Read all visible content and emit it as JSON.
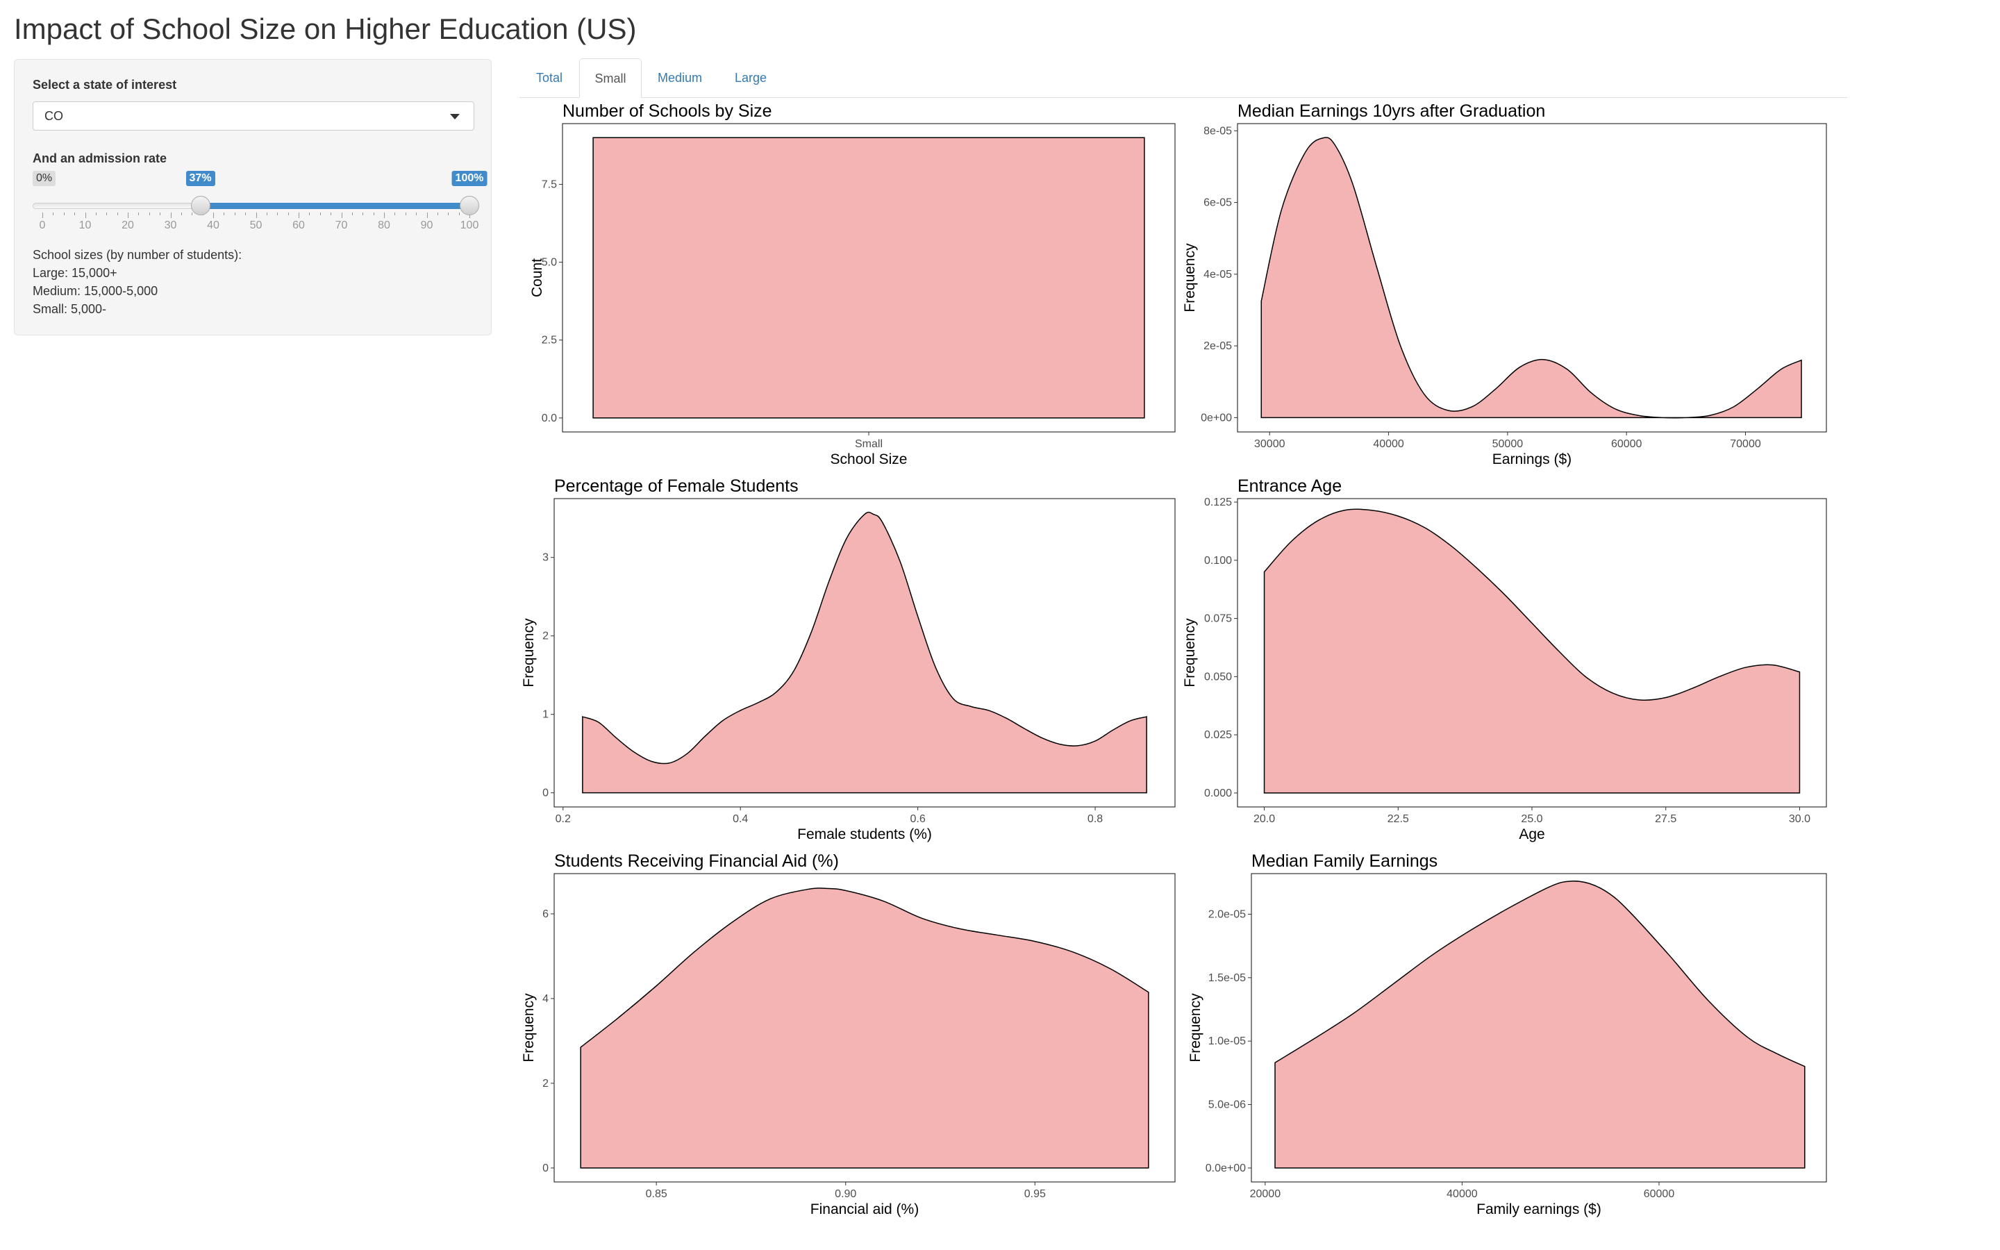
{
  "page": {
    "title": "Impact of School Size on Higher Education (US)"
  },
  "sidebar": {
    "state_label": "Select a state of interest",
    "state_value": "CO",
    "rate_label": "And an admission rate",
    "rate_min_label": "0%",
    "rate_from_label": "37%",
    "rate_to_label": "100%",
    "slider": {
      "min": 0,
      "max": 100,
      "from": 37,
      "to": 100,
      "tick_labels": [
        "0",
        "10",
        "20",
        "30",
        "40",
        "50",
        "60",
        "70",
        "80",
        "90",
        "100"
      ]
    },
    "notes": [
      "School sizes (by number of students):",
      "Large: 15,000+",
      "Medium: 15,000-5,000",
      "Small: 5,000-"
    ]
  },
  "tabs": [
    {
      "label": "Total",
      "active": false
    },
    {
      "label": "Small",
      "active": true
    },
    {
      "label": "Medium",
      "active": false
    },
    {
      "label": "Large",
      "active": false
    }
  ],
  "colors": {
    "fill": "#f4b4b4",
    "accent": "#428bca",
    "link": "#337ab7"
  },
  "chart_data": [
    {
      "id": "schools",
      "type": "bar",
      "title": "Number of Schools by Size",
      "xlabel": "School Size",
      "ylabel": "Count",
      "categories": [
        "Small"
      ],
      "values": [
        9
      ],
      "ylim": [
        -0.45,
        9.45
      ],
      "yticks": [
        0,
        2.5,
        5,
        7.5
      ],
      "ytick_labels": [
        "0.0",
        "2.5",
        "5.0",
        "7.5"
      ]
    },
    {
      "id": "earnings",
      "type": "area",
      "title": "Median Earnings 10yrs after Graduation",
      "xlabel": "Earnings ($)",
      "ylabel": "Frequency",
      "xlim": [
        27300,
        76800
      ],
      "ylim": [
        -4e-06,
        8.2e-05
      ],
      "xticks": [
        30000,
        40000,
        50000,
        60000,
        70000
      ],
      "xtick_labels": [
        "30000",
        "40000",
        "50000",
        "60000",
        "70000"
      ],
      "yticks": [
        0,
        2e-05,
        4e-05,
        6e-05,
        8e-05
      ],
      "ytick_labels": [
        "0e+00",
        "2e-05",
        "4e-05",
        "6e-05",
        "8e-05"
      ],
      "x": [
        29300,
        31000,
        33000,
        34500,
        35500,
        37000,
        39000,
        41000,
        43000,
        45000,
        47000,
        49000,
        51000,
        53000,
        55000,
        57000,
        59000,
        61000,
        63000,
        65000,
        67000,
        69000,
        71000,
        73000,
        74700
      ],
      "y": [
        3.25e-05,
        5.8e-05,
        7.4e-05,
        7.8e-05,
        7.6e-05,
        6.5e-05,
        4.2e-05,
        2e-05,
        6.5e-06,
        2e-06,
        3e-06,
        8e-06,
        1.4e-05,
        1.62e-05,
        1.35e-05,
        7e-06,
        2.5e-06,
        6e-07,
        0,
        0,
        6e-07,
        3e-06,
        8e-06,
        1.35e-05,
        1.6e-05
      ]
    },
    {
      "id": "female",
      "type": "area",
      "title": "Percentage of Female Students",
      "xlabel": "Female students (%)",
      "ylabel": "Frequency",
      "xlim": [
        0.19,
        0.89
      ],
      "ylim": [
        -0.18,
        3.75
      ],
      "xticks": [
        0.2,
        0.4,
        0.6,
        0.8
      ],
      "xtick_labels": [
        "0.2",
        "0.4",
        "0.6",
        "0.8"
      ],
      "yticks": [
        0,
        1,
        2,
        3
      ],
      "ytick_labels": [
        "0",
        "1",
        "2",
        "3"
      ],
      "x": [
        0.222,
        0.24,
        0.26,
        0.28,
        0.3,
        0.32,
        0.34,
        0.36,
        0.38,
        0.4,
        0.42,
        0.44,
        0.46,
        0.48,
        0.5,
        0.52,
        0.54,
        0.55,
        0.56,
        0.58,
        0.6,
        0.62,
        0.64,
        0.66,
        0.68,
        0.7,
        0.72,
        0.74,
        0.76,
        0.78,
        0.8,
        0.82,
        0.84,
        0.858
      ],
      "y": [
        0.97,
        0.9,
        0.7,
        0.52,
        0.4,
        0.38,
        0.5,
        0.72,
        0.92,
        1.05,
        1.15,
        1.28,
        1.55,
        2.05,
        2.7,
        3.25,
        3.55,
        3.55,
        3.45,
        2.95,
        2.25,
        1.6,
        1.2,
        1.1,
        1.05,
        0.95,
        0.82,
        0.7,
        0.62,
        0.6,
        0.66,
        0.8,
        0.92,
        0.97
      ]
    },
    {
      "id": "age",
      "type": "area",
      "title": "Entrance Age",
      "xlabel": "Age",
      "ylabel": "Frequency",
      "xlim": [
        19.5,
        30.5
      ],
      "ylim": [
        -0.006,
        0.1265
      ],
      "xticks": [
        20,
        22.5,
        25,
        27.5,
        30
      ],
      "xtick_labels": [
        "20.0",
        "22.5",
        "25.0",
        "27.5",
        "30.0"
      ],
      "yticks": [
        0,
        0.025,
        0.05,
        0.075,
        0.1,
        0.125
      ],
      "ytick_labels": [
        "0.000",
        "0.025",
        "0.050",
        "0.075",
        "0.100",
        "0.125"
      ],
      "x": [
        20,
        20.5,
        21,
        21.5,
        22,
        22.5,
        23,
        23.5,
        24,
        24.5,
        25,
        25.5,
        26,
        26.5,
        27,
        27.5,
        28,
        28.5,
        29,
        29.5,
        30
      ],
      "y": [
        0.095,
        0.108,
        0.117,
        0.1215,
        0.1215,
        0.119,
        0.114,
        0.106,
        0.096,
        0.085,
        0.073,
        0.061,
        0.05,
        0.043,
        0.04,
        0.041,
        0.045,
        0.05,
        0.054,
        0.055,
        0.052
      ]
    },
    {
      "id": "finaid",
      "type": "area",
      "title": "Students Receiving Financial Aid (%)",
      "xlabel": "Financial aid (%)",
      "ylabel": "Frequency",
      "xlim": [
        0.823,
        0.987
      ],
      "ylim": [
        -0.33,
        6.95
      ],
      "xticks": [
        0.85,
        0.9,
        0.95
      ],
      "xtick_labels": [
        "0.85",
        "0.90",
        "0.95"
      ],
      "yticks": [
        0,
        2,
        4,
        6
      ],
      "ytick_labels": [
        "0",
        "2",
        "4",
        "6"
      ],
      "x": [
        0.83,
        0.84,
        0.85,
        0.86,
        0.87,
        0.88,
        0.89,
        0.895,
        0.9,
        0.91,
        0.92,
        0.93,
        0.94,
        0.95,
        0.96,
        0.97,
        0.98
      ],
      "y": [
        2.85,
        3.55,
        4.3,
        5.1,
        5.8,
        6.35,
        6.58,
        6.6,
        6.55,
        6.3,
        5.9,
        5.65,
        5.5,
        5.35,
        5.1,
        4.7,
        4.15
      ]
    },
    {
      "id": "family",
      "type": "area",
      "title": "Median Family Earnings",
      "xlabel": "Family earnings ($)",
      "ylabel": "Frequency",
      "xlim": [
        18600,
        77000
      ],
      "ylim": [
        -1.1e-06,
        2.32e-05
      ],
      "xticks": [
        20000,
        40000,
        60000
      ],
      "xtick_labels": [
        "20000",
        "40000",
        "60000"
      ],
      "yticks": [
        0,
        5e-06,
        1e-05,
        1.5e-05,
        2e-05
      ],
      "ytick_labels": [
        "0.0e+00",
        "5.0e-06",
        "1.0e-05",
        "1.5e-05",
        "2.0e-05"
      ],
      "x": [
        21000,
        25000,
        29000,
        33000,
        37000,
        41000,
        45000,
        49000,
        51000,
        53000,
        55000,
        57000,
        61000,
        65000,
        69000,
        72000,
        74800
      ],
      "y": [
        8.3e-06,
        1.02e-05,
        1.22e-05,
        1.45e-05,
        1.68e-05,
        1.88e-05,
        2.06e-05,
        2.22e-05,
        2.26e-05,
        2.24e-05,
        2.16e-05,
        2.02e-05,
        1.68e-05,
        1.32e-05,
        1.03e-05,
        9e-06,
        8e-06
      ]
    }
  ]
}
